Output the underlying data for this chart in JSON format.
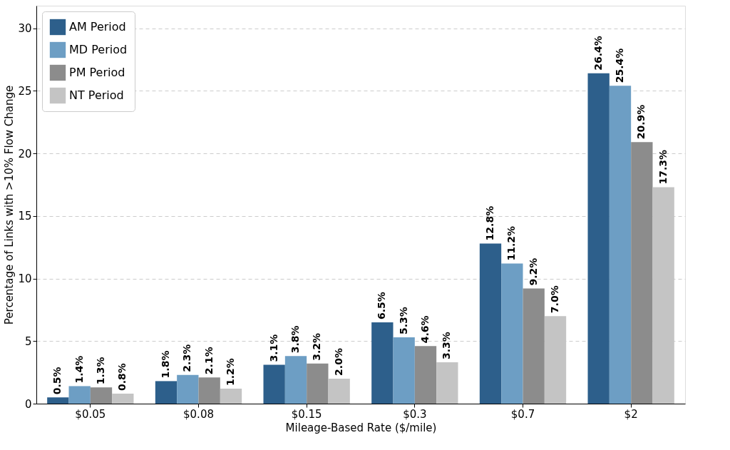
{
  "chart_data": {
    "type": "bar",
    "xlabel": "Mileage-Based Rate ($/mile)",
    "ylabel": "Percentage of Links with >10% Flow Change",
    "categories": [
      "$0.05",
      "$0.08",
      "$0.15",
      "$0.3",
      "$0.7",
      "$2"
    ],
    "series": [
      {
        "name": "AM Period",
        "color": "#2d5f8b",
        "values": [
          0.5,
          1.8,
          3.1,
          6.5,
          12.8,
          26.4
        ],
        "value_labels": [
          "0.5%",
          "1.8%",
          "3.1%",
          "6.5%",
          "12.8%",
          "26.4%"
        ]
      },
      {
        "name": "MD Period",
        "color": "#6d9ec4",
        "values": [
          1.4,
          2.3,
          3.8,
          5.3,
          11.2,
          25.4
        ],
        "value_labels": [
          "1.4%",
          "2.3%",
          "3.8%",
          "5.3%",
          "11.2%",
          "25.4%"
        ]
      },
      {
        "name": "PM Period",
        "color": "#8c8c8c",
        "values": [
          1.3,
          2.1,
          3.2,
          4.6,
          9.2,
          20.9
        ],
        "value_labels": [
          "1.3%",
          "2.1%",
          "3.2%",
          "4.6%",
          "9.2%",
          "20.9%"
        ]
      },
      {
        "name": "NT Period",
        "color": "#c4c4c4",
        "values": [
          0.8,
          1.2,
          2.0,
          3.3,
          7.0,
          17.3
        ],
        "value_labels": [
          "0.8%",
          "1.2%",
          "2.0%",
          "3.3%",
          "7.0%",
          "17.3%"
        ]
      }
    ],
    "ylim": [
      0,
      31.8
    ],
    "yticks": [
      0,
      5,
      10,
      15,
      20,
      25,
      30
    ],
    "grid": "y",
    "legend": "top left"
  }
}
